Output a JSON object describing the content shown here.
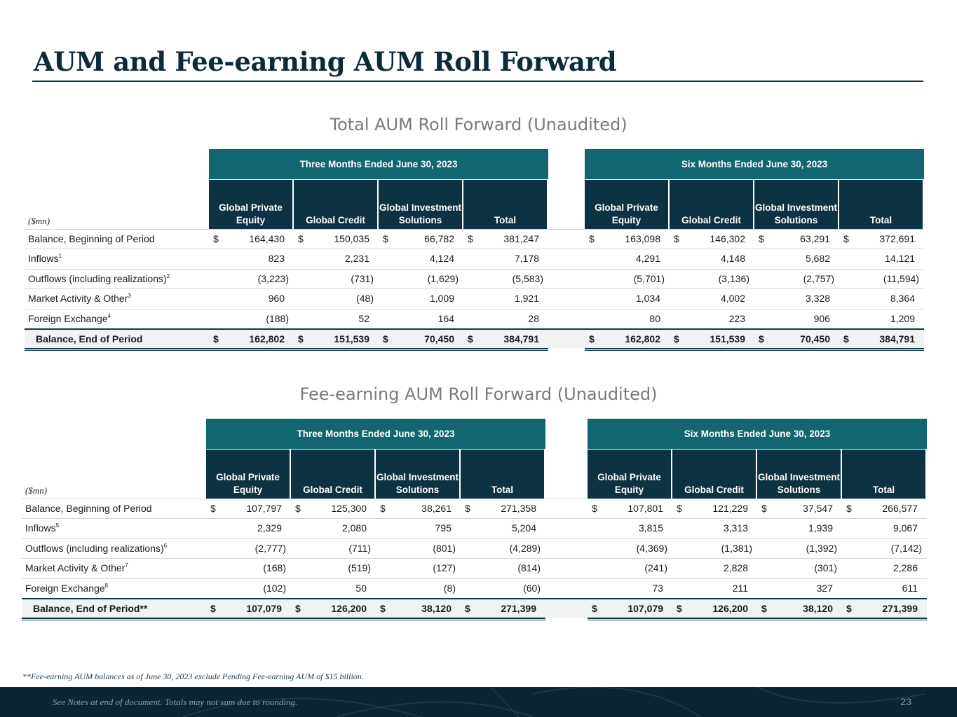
{
  "title": "AUM and Fee-earning AUM Roll Forward",
  "sections": [
    {
      "title": "Total AUM Roll Forward (Unaudited)",
      "units_label": "($mn)",
      "periods": [
        "Three Months Ended June 30, 2023",
        "Six Months Ended June 30, 2023"
      ],
      "columns": [
        "Global Private Equity",
        "Global Credit",
        "Global Investment Solutions",
        "Total"
      ],
      "rows": [
        {
          "label": "Balance, Beginning of Period",
          "sup": "",
          "dollar": true,
          "total": false,
          "three": [
            "164,430",
            "150,035",
            "66,782",
            "381,247"
          ],
          "six": [
            "163,098",
            "146,302",
            "63,291",
            "372,691"
          ]
        },
        {
          "label": "Inflows",
          "sup": "1",
          "dollar": false,
          "total": false,
          "three": [
            "823",
            "2,231",
            "4,124",
            "7,178"
          ],
          "six": [
            "4,291",
            "4,148",
            "5,682",
            "14,121"
          ]
        },
        {
          "label": "Outflows (including realizations)",
          "sup": "2",
          "dollar": false,
          "total": false,
          "three": [
            "(3,223)",
            "(731)",
            "(1,629)",
            "(5,583)"
          ],
          "six": [
            "(5,701)",
            "(3,136)",
            "(2,757)",
            "(11,594)"
          ]
        },
        {
          "label": "Market Activity & Other",
          "sup": "3",
          "dollar": false,
          "total": false,
          "three": [
            "960",
            "(48)",
            "1,009",
            "1,921"
          ],
          "six": [
            "1,034",
            "4,002",
            "3,328",
            "8,364"
          ]
        },
        {
          "label": "Foreign Exchange",
          "sup": "4",
          "dollar": false,
          "total": false,
          "three": [
            "(188)",
            "52",
            "164",
            "28"
          ],
          "six": [
            "80",
            "223",
            "906",
            "1,209"
          ]
        },
        {
          "label": "Balance, End of Period",
          "sup": "",
          "dollar": true,
          "total": true,
          "three": [
            "162,802",
            "151,539",
            "70,450",
            "384,791"
          ],
          "six": [
            "162,802",
            "151,539",
            "70,450",
            "384,791"
          ]
        }
      ]
    },
    {
      "title": "Fee-earning AUM Roll Forward (Unaudited)",
      "units_label": "($mn)",
      "periods": [
        "Three Months Ended June 30, 2023",
        "Six Months Ended June 30, 2023"
      ],
      "columns": [
        "Global Private Equity",
        "Global Credit",
        "Global Investment Solutions",
        "Total"
      ],
      "rows": [
        {
          "label": "Balance, Beginning of Period",
          "sup": "",
          "dollar": true,
          "total": false,
          "three": [
            "107,797",
            "125,300",
            "38,261",
            "271,358"
          ],
          "six": [
            "107,801",
            "121,229",
            "37,547",
            "266,577"
          ]
        },
        {
          "label": "Inflows",
          "sup": "5",
          "dollar": false,
          "total": false,
          "three": [
            "2,329",
            "2,080",
            "795",
            "5,204"
          ],
          "six": [
            "3,815",
            "3,313",
            "1,939",
            "9,067"
          ]
        },
        {
          "label": "Outflows (including realizations)",
          "sup": "6",
          "dollar": false,
          "total": false,
          "three": [
            "(2,777)",
            "(711)",
            "(801)",
            "(4,289)"
          ],
          "six": [
            "(4,369)",
            "(1,381)",
            "(1,392)",
            "(7,142)"
          ]
        },
        {
          "label": "Market Activity & Other",
          "sup": "7",
          "dollar": false,
          "total": false,
          "three": [
            "(168)",
            "(519)",
            "(127)",
            "(814)"
          ],
          "six": [
            "(241)",
            "2,828",
            "(301)",
            "2,286"
          ]
        },
        {
          "label": "Foreign Exchange",
          "sup": "8",
          "dollar": false,
          "total": false,
          "three": [
            "(102)",
            "50",
            "(8)",
            "(60)"
          ],
          "six": [
            "73",
            "211",
            "327",
            "611"
          ]
        },
        {
          "label": "Balance, End of Period**",
          "sup": "",
          "dollar": true,
          "total": true,
          "three": [
            "107,079",
            "126,200",
            "38,120",
            "271,399"
          ],
          "six": [
            "107,079",
            "126,200",
            "38,120",
            "271,399"
          ]
        }
      ]
    }
  ],
  "currency_symbol": "$",
  "footnote": "**Fee-earning AUM balances as of June 30, 2023 exclude Pending Fee-earning AUM of $15 billion.",
  "footer_note": "See Notes at end of document. Totals may not sum due to rounding.",
  "page_number": "23",
  "colors": {
    "band": "#116672",
    "header": "#0d3243",
    "footer": "#0b2537",
    "rule": "#0d3b48"
  }
}
